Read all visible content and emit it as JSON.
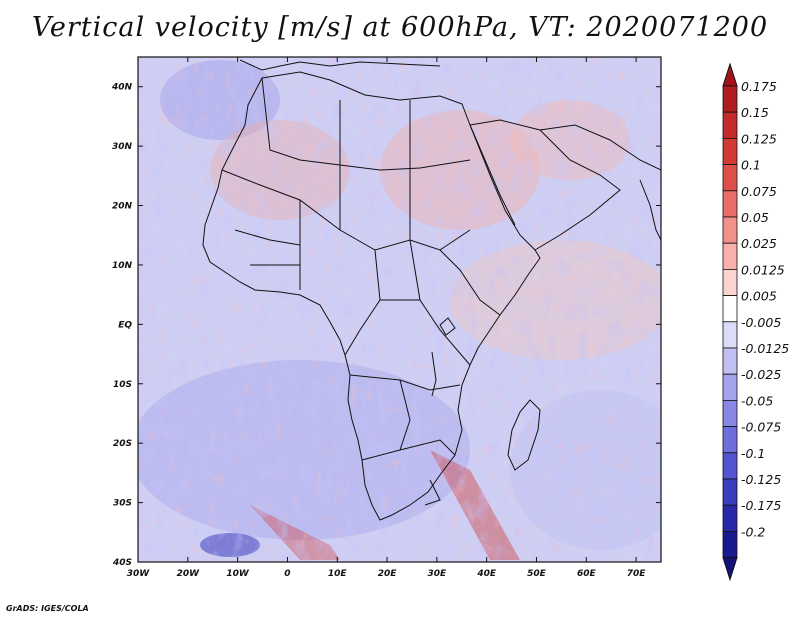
{
  "title": "Vertical velocity [m/s] at 600hPa, VT: 2020071200",
  "credit": "GrADS: IGES/COLA",
  "map": {
    "lon_ticks": [
      "30W",
      "20W",
      "10W",
      "0",
      "10E",
      "20E",
      "30E",
      "40E",
      "50E",
      "60E",
      "70E"
    ],
    "lat_ticks": [
      "40N",
      "30N",
      "20N",
      "10N",
      "EQ",
      "10S",
      "20S",
      "30S",
      "40S"
    ],
    "lon_range": [
      -30,
      75
    ],
    "lat_range": [
      -40,
      45
    ]
  },
  "colorbar": {
    "levels": [
      {
        "label": "0.175",
        "color": "#b01c20"
      },
      {
        "label": "0.15",
        "color": "#c42a2a"
      },
      {
        "label": "0.125",
        "color": "#d43a34"
      },
      {
        "label": "0.1",
        "color": "#e0504a"
      },
      {
        "label": "0.075",
        "color": "#ea6c66"
      },
      {
        "label": "0.05",
        "color": "#f2908a"
      },
      {
        "label": "0.025",
        "color": "#f7b0aa"
      },
      {
        "label": "0.0125",
        "color": "#fbd3cf"
      },
      {
        "label": "0.005",
        "color": "#ffffff"
      },
      {
        "label": "-0.005",
        "color": "#dcdcf8"
      },
      {
        "label": "-0.0125",
        "color": "#c0c0f2"
      },
      {
        "label": "-0.025",
        "color": "#a4a4ec"
      },
      {
        "label": "-0.05",
        "color": "#8888e4"
      },
      {
        "label": "-0.075",
        "color": "#6e6edc"
      },
      {
        "label": "-0.1",
        "color": "#5454d0"
      },
      {
        "label": "-0.125",
        "color": "#3c3cc0"
      },
      {
        "label": "-0.175",
        "color": "#2828a8"
      },
      {
        "label": "-0.2",
        "color": "#1a1a90"
      }
    ],
    "top_color": "#a01418",
    "bottom_color": "#12127a"
  }
}
